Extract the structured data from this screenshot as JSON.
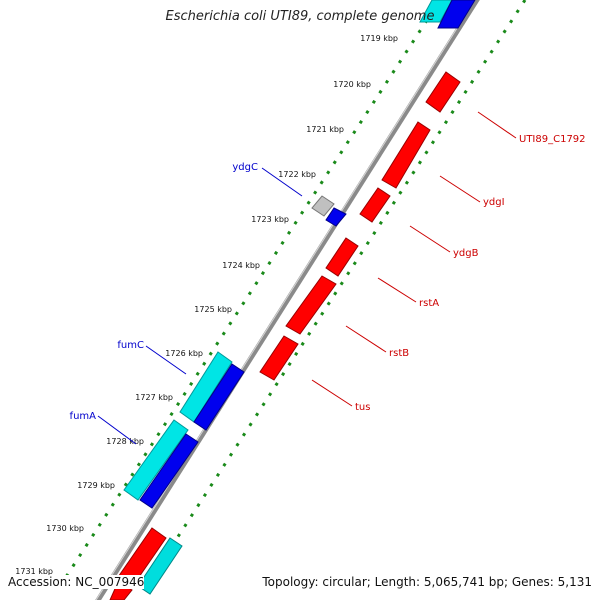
{
  "header": {
    "title": "Escherichia coli UTI89, complete genome"
  },
  "footer": {
    "accession": "Accession: NC_007946",
    "summary": "Topology: circular; Length: 5,065,741 bp; Genes: 5,131"
  },
  "colors": {
    "backbone": "#8a8a8a",
    "tick_dots": "#1a8a1a",
    "forward_gene": "#ff0000",
    "reverse_gene": "#0000ff",
    "rna_gene": "#00e5e5",
    "other_gene": "#c0c0c0",
    "label_forward": "#cc0000",
    "label_reverse": "#0000cc"
  },
  "scale": {
    "unit": "kbp",
    "ticks": [
      "1719 kbp",
      "1720 kbp",
      "1721 kbp",
      "1722 kbp",
      "1723 kbp",
      "1724 kbp",
      "1725 kbp",
      "1726 kbp",
      "1727 kbp",
      "1728 kbp",
      "1729 kbp",
      "1730 kbp",
      "1731 kbp"
    ]
  },
  "gene_labels_left": [
    "ydgC",
    "fumC",
    "fumA"
  ],
  "gene_labels_right": [
    "UTI89_C1792",
    "ydgI",
    "ydgB",
    "rstA",
    "rstB",
    "tus"
  ]
}
